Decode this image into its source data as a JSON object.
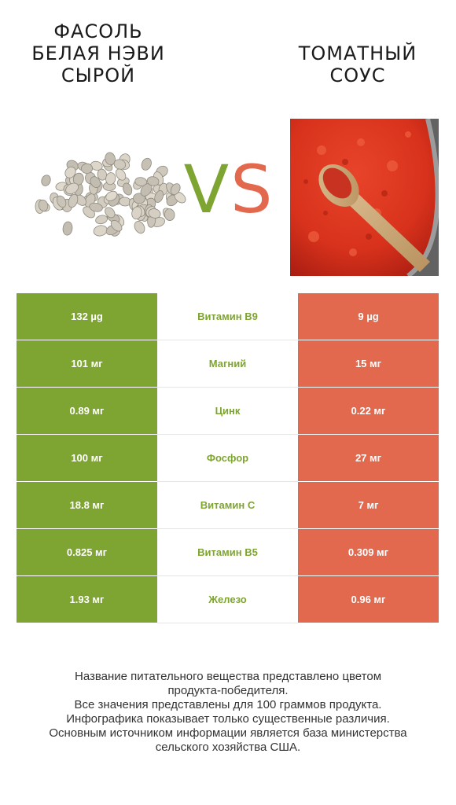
{
  "left_product": {
    "title": "ФАСОЛЬ\nБЕЛАЯ НЭВИ\nСЫРОЙ"
  },
  "right_product": {
    "title": "ТОМАТНЫЙ\nСОУС"
  },
  "vs": {
    "v": "V",
    "s": "S"
  },
  "colors": {
    "left": "#7ea432",
    "right": "#e3694e"
  },
  "rows": [
    {
      "left": "132 µg",
      "nutrient": "Витамин B9",
      "right": "9 µg"
    },
    {
      "left": "101 мг",
      "nutrient": "Магний",
      "right": "15 мг"
    },
    {
      "left": "0.89 мг",
      "nutrient": "Цинк",
      "right": "0.22 мг"
    },
    {
      "left": "100 мг",
      "nutrient": "Фосфор",
      "right": "27 мг"
    },
    {
      "left": "18.8 мг",
      "nutrient": "Витамин C",
      "right": "7 мг"
    },
    {
      "left": "0.825 мг",
      "nutrient": "Витамин B5",
      "right": "0.309 мг"
    },
    {
      "left": "1.93 мг",
      "nutrient": "Железо",
      "right": "0.96 мг"
    }
  ],
  "footer": {
    "line1": "Название питательного вещества представлено цветом",
    "line2": "продукта-победителя.",
    "line3": "Все значения представлены для 100 граммов продукта.",
    "line4": "Инфографика показывает только существенные различия.",
    "line5": "Основным источником информации является база министерства",
    "line6": "сельского хозяйства США."
  }
}
